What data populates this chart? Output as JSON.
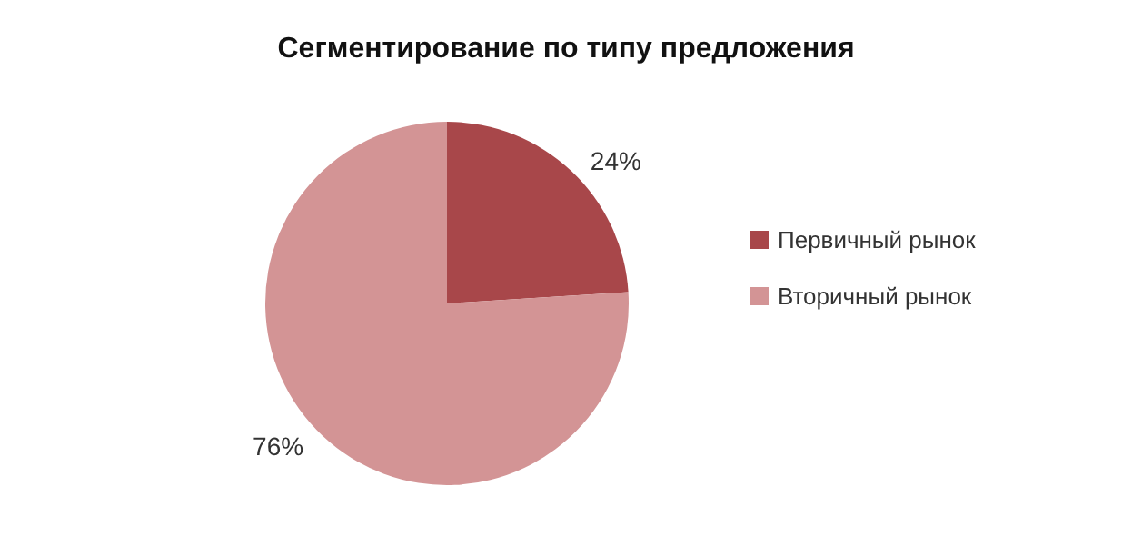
{
  "chart_data": {
    "type": "pie",
    "title": "Сегментирование по типу предложения",
    "categories": [
      "Первичный рынок",
      "Вторичный рынок"
    ],
    "values": [
      24,
      76
    ],
    "colors": [
      "#a8474a",
      "#d39495"
    ],
    "value_labels": [
      "24%",
      "76%"
    ],
    "legend": "right"
  }
}
